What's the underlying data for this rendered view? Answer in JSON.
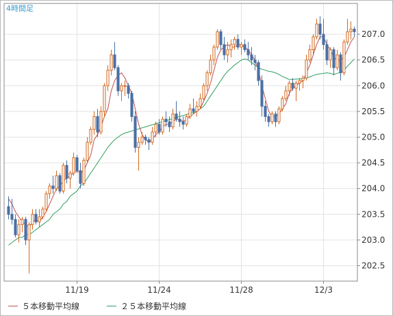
{
  "chart_data": {
    "type": "candlestick",
    "title": "4時間足",
    "ylim": [
      202.2,
      207.6
    ],
    "y_ticks": [
      "202.5",
      "203.0",
      "203.5",
      "204.0",
      "204.5",
      "205.0",
      "205.5",
      "206.0",
      "206.5",
      "207.0"
    ],
    "x_ticks": [
      {
        "index": 20,
        "label": "11/19"
      },
      {
        "index": 44,
        "label": "11/24"
      },
      {
        "index": 68,
        "label": "11/28"
      },
      {
        "index": 92,
        "label": "12/3"
      }
    ],
    "grid": true,
    "legend": [
      {
        "name": "５本移動平均線",
        "color": "#c0504d"
      },
      {
        "name": "２５本移動平均線",
        "color": "#2e9e5e"
      }
    ],
    "colors": {
      "up": "#d2691e",
      "down": "#4a6fa5",
      "ma5": "#c0504d",
      "ma25": "#2e9e5e",
      "grid": "#e2e2e2",
      "axis": "#888888"
    },
    "ohlc": [
      [
        203.65,
        203.85,
        203.4,
        203.5
      ],
      [
        203.5,
        203.8,
        203.3,
        203.4
      ],
      [
        203.4,
        203.5,
        203.05,
        203.1
      ],
      [
        203.1,
        203.4,
        202.95,
        203.3
      ],
      [
        203.3,
        203.45,
        203.15,
        203.4
      ],
      [
        203.4,
        203.45,
        202.9,
        203.0
      ],
      [
        203.0,
        203.35,
        202.35,
        203.3
      ],
      [
        203.3,
        203.6,
        203.2,
        203.5
      ],
      [
        203.5,
        203.6,
        203.3,
        203.35
      ],
      [
        203.35,
        203.6,
        203.25,
        203.45
      ],
      [
        203.45,
        203.65,
        203.4,
        203.6
      ],
      [
        203.6,
        203.95,
        203.55,
        203.9
      ],
      [
        203.9,
        204.1,
        203.8,
        204.05
      ],
      [
        204.05,
        204.25,
        203.9,
        204.0
      ],
      [
        204.0,
        204.35,
        203.95,
        204.25
      ],
      [
        204.25,
        204.3,
        203.9,
        203.95
      ],
      [
        203.95,
        204.5,
        203.9,
        204.45
      ],
      [
        204.45,
        204.55,
        204.1,
        204.2
      ],
      [
        204.2,
        204.35,
        204.0,
        204.3
      ],
      [
        204.3,
        204.7,
        204.25,
        204.6
      ],
      [
        204.6,
        204.65,
        204.3,
        204.35
      ],
      [
        204.35,
        204.5,
        204.0,
        204.1
      ],
      [
        204.1,
        204.6,
        204.05,
        204.55
      ],
      [
        204.55,
        205.0,
        204.5,
        204.9
      ],
      [
        204.9,
        205.2,
        204.85,
        205.15
      ],
      [
        205.15,
        205.5,
        205.05,
        205.4
      ],
      [
        205.4,
        205.55,
        205.0,
        205.1
      ],
      [
        205.1,
        205.6,
        205.05,
        205.5
      ],
      [
        205.5,
        206.05,
        205.4,
        206.0
      ],
      [
        206.0,
        206.4,
        205.9,
        206.3
      ],
      [
        206.3,
        206.7,
        206.2,
        206.6
      ],
      [
        206.6,
        206.85,
        206.3,
        206.35
      ],
      [
        206.35,
        206.4,
        205.8,
        205.9
      ],
      [
        205.9,
        206.05,
        205.7,
        206.0
      ],
      [
        206.0,
        206.1,
        205.8,
        206.0
      ],
      [
        206.0,
        206.05,
        205.75,
        205.85
      ],
      [
        205.85,
        205.9,
        205.3,
        205.4
      ],
      [
        205.4,
        205.5,
        204.7,
        204.8
      ],
      [
        204.8,
        205.0,
        204.35,
        204.9
      ],
      [
        204.9,
        205.1,
        204.85,
        205.0
      ],
      [
        205.0,
        205.05,
        204.85,
        204.95
      ],
      [
        204.95,
        205.0,
        204.75,
        204.9
      ],
      [
        204.9,
        205.2,
        204.85,
        205.1
      ],
      [
        205.1,
        205.3,
        205.0,
        205.25
      ],
      [
        205.25,
        205.35,
        205.05,
        205.1
      ],
      [
        205.1,
        205.4,
        205.05,
        205.35
      ],
      [
        205.35,
        205.5,
        205.2,
        205.3
      ],
      [
        205.3,
        205.4,
        205.1,
        205.2
      ],
      [
        205.2,
        205.55,
        205.15,
        205.45
      ],
      [
        205.45,
        205.7,
        205.3,
        205.35
      ],
      [
        205.35,
        205.5,
        205.2,
        205.3
      ],
      [
        205.3,
        205.4,
        205.15,
        205.25
      ],
      [
        205.25,
        205.45,
        205.2,
        205.4
      ],
      [
        205.4,
        205.65,
        205.35,
        205.55
      ],
      [
        205.55,
        205.75,
        205.45,
        205.5
      ],
      [
        205.5,
        205.7,
        205.4,
        205.6
      ],
      [
        205.6,
        205.85,
        205.55,
        205.75
      ],
      [
        205.75,
        206.05,
        205.7,
        206.0
      ],
      [
        206.0,
        206.3,
        205.9,
        206.25
      ],
      [
        206.25,
        206.6,
        206.2,
        206.5
      ],
      [
        206.5,
        206.8,
        206.4,
        206.75
      ],
      [
        206.75,
        207.1,
        206.7,
        207.05
      ],
      [
        207.05,
        207.1,
        206.7,
        206.8
      ],
      [
        206.8,
        206.95,
        206.5,
        206.6
      ],
      [
        206.6,
        206.85,
        206.45,
        206.7
      ],
      [
        206.7,
        206.9,
        206.55,
        206.8
      ],
      [
        206.8,
        206.95,
        206.7,
        206.9
      ],
      [
        206.9,
        207.0,
        206.7,
        206.75
      ],
      [
        206.75,
        206.85,
        206.6,
        206.8
      ],
      [
        206.8,
        206.9,
        206.65,
        206.7
      ],
      [
        206.7,
        206.85,
        206.5,
        206.6
      ],
      [
        206.6,
        206.75,
        206.4,
        206.5
      ],
      [
        206.5,
        206.6,
        206.3,
        206.45
      ],
      [
        206.45,
        206.5,
        206.0,
        206.1
      ],
      [
        206.1,
        206.2,
        205.4,
        205.6
      ],
      [
        205.6,
        205.7,
        205.3,
        205.4
      ],
      [
        205.4,
        205.45,
        205.2,
        205.3
      ],
      [
        205.3,
        205.5,
        205.25,
        205.45
      ],
      [
        205.45,
        205.5,
        205.2,
        205.3
      ],
      [
        205.3,
        205.6,
        205.25,
        205.55
      ],
      [
        205.55,
        205.8,
        205.5,
        205.75
      ],
      [
        205.75,
        206.0,
        205.7,
        205.9
      ],
      [
        205.9,
        206.1,
        205.8,
        206.05
      ],
      [
        206.05,
        206.15,
        205.9,
        205.95
      ],
      [
        205.95,
        206.1,
        205.7,
        206.05
      ],
      [
        206.05,
        206.15,
        205.9,
        206.1
      ],
      [
        206.1,
        206.2,
        205.95,
        206.15
      ],
      [
        206.15,
        206.6,
        206.1,
        206.5
      ],
      [
        206.5,
        206.8,
        206.45,
        206.7
      ],
      [
        206.7,
        207.0,
        206.6,
        206.95
      ],
      [
        206.95,
        207.3,
        206.9,
        207.2
      ],
      [
        207.2,
        207.35,
        206.9,
        207.0
      ],
      [
        207.0,
        207.3,
        206.7,
        206.8
      ],
      [
        206.8,
        206.9,
        206.4,
        206.5
      ],
      [
        206.5,
        206.75,
        206.35,
        206.7
      ],
      [
        206.7,
        206.75,
        206.2,
        206.35
      ],
      [
        206.35,
        206.7,
        206.3,
        206.6
      ],
      [
        206.6,
        206.65,
        206.1,
        206.25
      ],
      [
        206.25,
        206.9,
        206.2,
        206.85
      ],
      [
        206.85,
        207.3,
        206.8,
        207.05
      ],
      [
        207.05,
        207.25,
        206.9,
        207.1
      ],
      [
        207.1,
        207.15,
        206.95,
        207.05
      ]
    ],
    "ma5": [
      203.8,
      203.7,
      203.55,
      203.45,
      203.35,
      203.3,
      203.25,
      203.35,
      203.4,
      203.35,
      203.45,
      203.55,
      203.7,
      203.85,
      204.0,
      204.05,
      204.15,
      204.2,
      204.25,
      204.3,
      204.35,
      204.3,
      204.35,
      204.5,
      204.65,
      204.95,
      205.05,
      205.2,
      205.4,
      205.55,
      205.9,
      206.1,
      206.2,
      206.25,
      206.15,
      206.0,
      205.85,
      205.55,
      205.25,
      205.05,
      204.95,
      204.9,
      204.95,
      205.05,
      205.1,
      205.2,
      205.25,
      205.25,
      205.3,
      205.35,
      205.35,
      205.3,
      205.35,
      205.4,
      205.45,
      205.5,
      205.55,
      205.7,
      205.85,
      206.05,
      206.3,
      206.55,
      206.7,
      206.75,
      206.8,
      206.75,
      206.75,
      206.8,
      206.8,
      206.75,
      206.7,
      206.6,
      206.5,
      206.3,
      206.0,
      205.75,
      205.5,
      205.4,
      205.4,
      205.45,
      205.55,
      205.65,
      205.85,
      205.95,
      206.0,
      206.05,
      206.1,
      206.25,
      206.4,
      206.6,
      206.8,
      206.95,
      206.95,
      206.8,
      206.7,
      206.55,
      206.5,
      206.5,
      206.55,
      206.7,
      206.85,
      206.95
    ],
    "ma25": [
      202.9,
      202.95,
      203.0,
      203.05,
      203.05,
      203.1,
      203.1,
      203.15,
      203.2,
      203.25,
      203.3,
      203.35,
      203.4,
      203.5,
      203.55,
      203.6,
      203.7,
      203.75,
      203.85,
      203.9,
      203.95,
      204.05,
      204.1,
      204.2,
      204.3,
      204.4,
      204.5,
      204.6,
      204.7,
      204.8,
      204.88,
      204.95,
      205.0,
      205.05,
      205.08,
      205.1,
      205.12,
      205.14,
      205.16,
      205.18,
      205.2,
      205.22,
      205.24,
      205.26,
      205.28,
      205.3,
      205.32,
      205.34,
      205.36,
      205.38,
      205.4,
      205.42,
      205.44,
      205.46,
      205.48,
      205.5,
      205.55,
      205.6,
      205.7,
      205.8,
      205.9,
      206.0,
      206.1,
      206.2,
      206.28,
      206.34,
      206.4,
      206.45,
      206.5,
      206.52,
      206.5,
      206.45,
      206.4,
      206.35,
      206.32,
      206.3,
      206.28,
      206.27,
      206.25,
      206.22,
      206.18,
      206.15,
      206.12,
      206.12,
      206.13,
      206.13,
      206.14,
      206.15,
      206.17,
      206.2,
      206.22,
      206.23,
      206.24,
      206.25,
      206.24,
      206.22,
      206.24,
      206.26,
      206.3,
      206.38,
      206.45,
      206.52
    ]
  }
}
